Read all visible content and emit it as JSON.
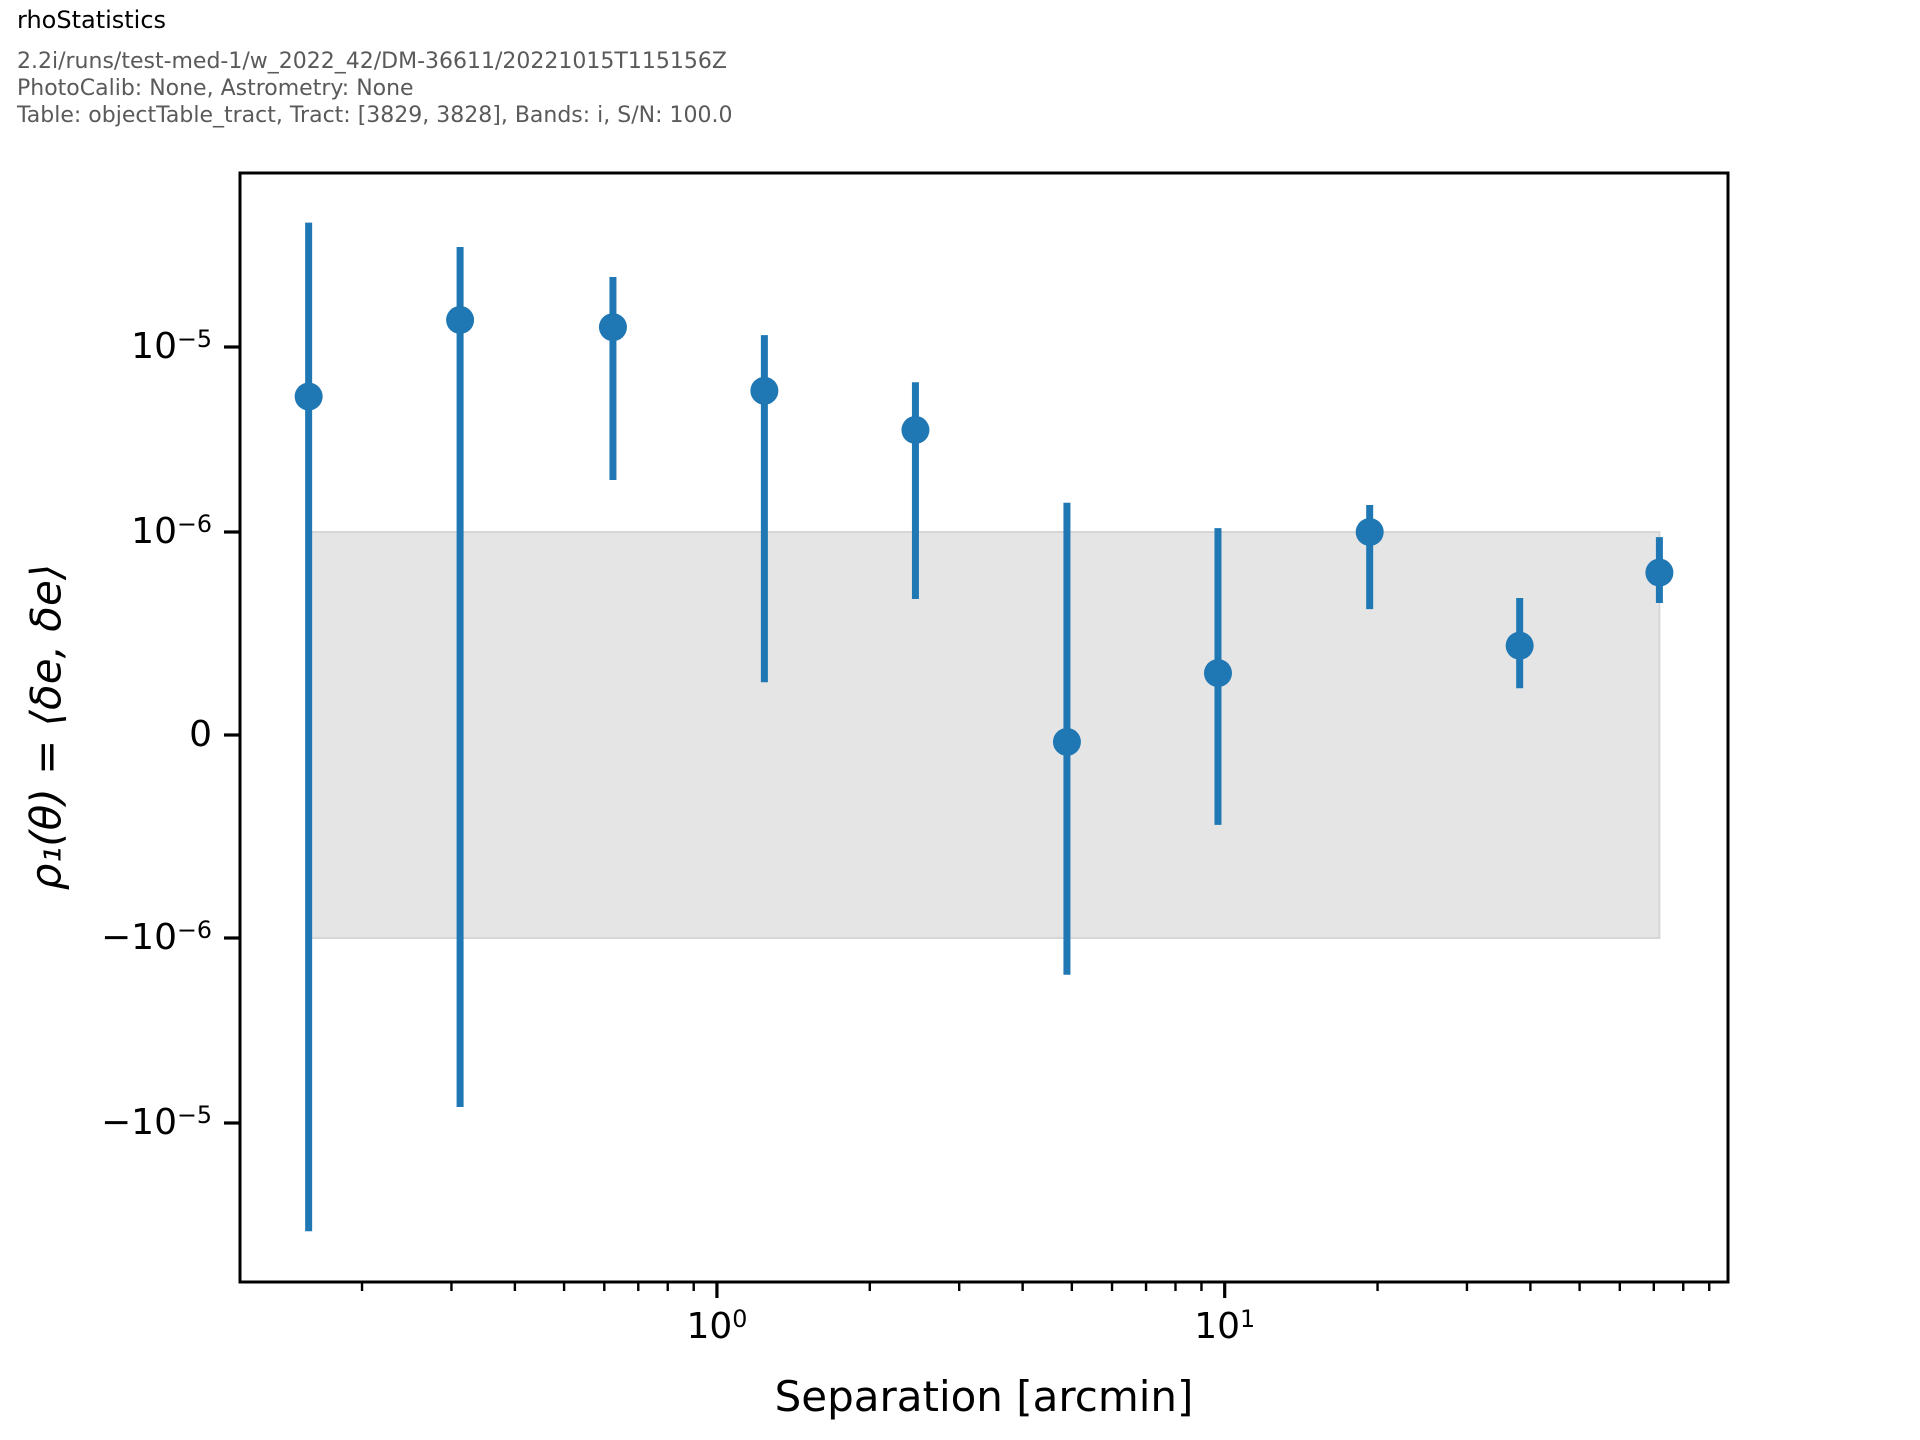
{
  "page": {
    "background": "#ffffff"
  },
  "header": {
    "title": "rhoStatistics",
    "subtitle_lines": [
      "2.2i/runs/test-med-1/w_2022_42/DM-36611/20221015T115156Z",
      "PhotoCalib: None, Astrometry: None",
      "Table: objectTable_tract, Tract: [3829, 3828], Bands: i, S/N: 100.0"
    ]
  },
  "chart_data": {
    "type": "scatter",
    "title": "rhoStatistics",
    "xlabel": "Separation [arcmin]",
    "ylabel": "ρ₁(θ) = ⟨δe, δe⟩",
    "x_scale": "log",
    "y_scale": "symlog",
    "y_linthresh": 1e-06,
    "xlim": [
      0.115,
      98
    ],
    "ylim": [
      -7.2e-05,
      8.7e-05
    ],
    "grid": false,
    "legend": null,
    "series": [
      {
        "name": "rho1",
        "color": "#1f77b4",
        "marker": "circle",
        "points": [
          {
            "x": 0.157,
            "y": 5.4e-06,
            "y_lo": -3.85e-05,
            "y_hi": 4.7e-05
          },
          {
            "x": 0.312,
            "y": 1.4e-05,
            "y_lo": -8.2e-06,
            "y_hi": 3.47e-05
          },
          {
            "x": 0.624,
            "y": 1.28e-05,
            "y_lo": 1.91e-06,
            "y_hi": 2.39e-05
          },
          {
            "x": 1.24,
            "y": 5.8e-06,
            "y_lo": 2.6e-07,
            "y_hi": 1.16e-05
          },
          {
            "x": 2.46,
            "y": 3.56e-06,
            "y_lo": 6.7e-07,
            "y_hi": 6.45e-06
          },
          {
            "x": 4.89,
            "y": -3.4e-08,
            "y_lo": -1.58e-06,
            "y_hi": 1.44e-06
          },
          {
            "x": 9.7,
            "y": 3.05e-07,
            "y_lo": -4.43e-07,
            "y_hi": 1.05e-06
          },
          {
            "x": 19.3,
            "y": 1e-06,
            "y_lo": 6.2e-07,
            "y_hi": 1.4e-06
          },
          {
            "x": 38.1,
            "y": 4.4e-07,
            "y_lo": 2.3e-07,
            "y_hi": 6.75e-07
          },
          {
            "x": 71.8,
            "y": 8e-07,
            "y_lo": 6.5e-07,
            "y_hi": 9.75e-07
          }
        ]
      }
    ],
    "reference_band": {
      "x_start": 0.157,
      "x_end": 71.8,
      "y_low": -1e-06,
      "y_high": 1e-06,
      "fill": "#e5e5e5",
      "edge": "#d6d6d6"
    },
    "x_ticks_major": [
      {
        "value": 1,
        "mantissa": "10",
        "exponent": "0"
      },
      {
        "value": 10,
        "mantissa": "10",
        "exponent": "1"
      }
    ],
    "x_ticks_minor": [
      0.2,
      0.3,
      0.4,
      0.5,
      0.6,
      0.7,
      0.8,
      0.9,
      2,
      3,
      4,
      5,
      6,
      7,
      8,
      9,
      20,
      30,
      40,
      50,
      60,
      70,
      80,
      90
    ],
    "y_ticks_major": [
      {
        "value": 1e-05,
        "mantissa": "10",
        "exponent": "−5"
      },
      {
        "value": 1e-06,
        "mantissa": "10",
        "exponent": "−6"
      },
      {
        "value": 0,
        "mantissa": "0",
        "exponent": null
      },
      {
        "value": -1e-06,
        "mantissa": "−10",
        "exponent": "−6"
      },
      {
        "value": -1e-05,
        "mantissa": "−10",
        "exponent": "−5"
      }
    ],
    "colors": {
      "marker": "#1f77b4",
      "axis": "#000000",
      "band_fill": "#e5e5e5",
      "band_edge": "#d6d6d6",
      "subtitle_gray": "#5a5a5a"
    }
  }
}
